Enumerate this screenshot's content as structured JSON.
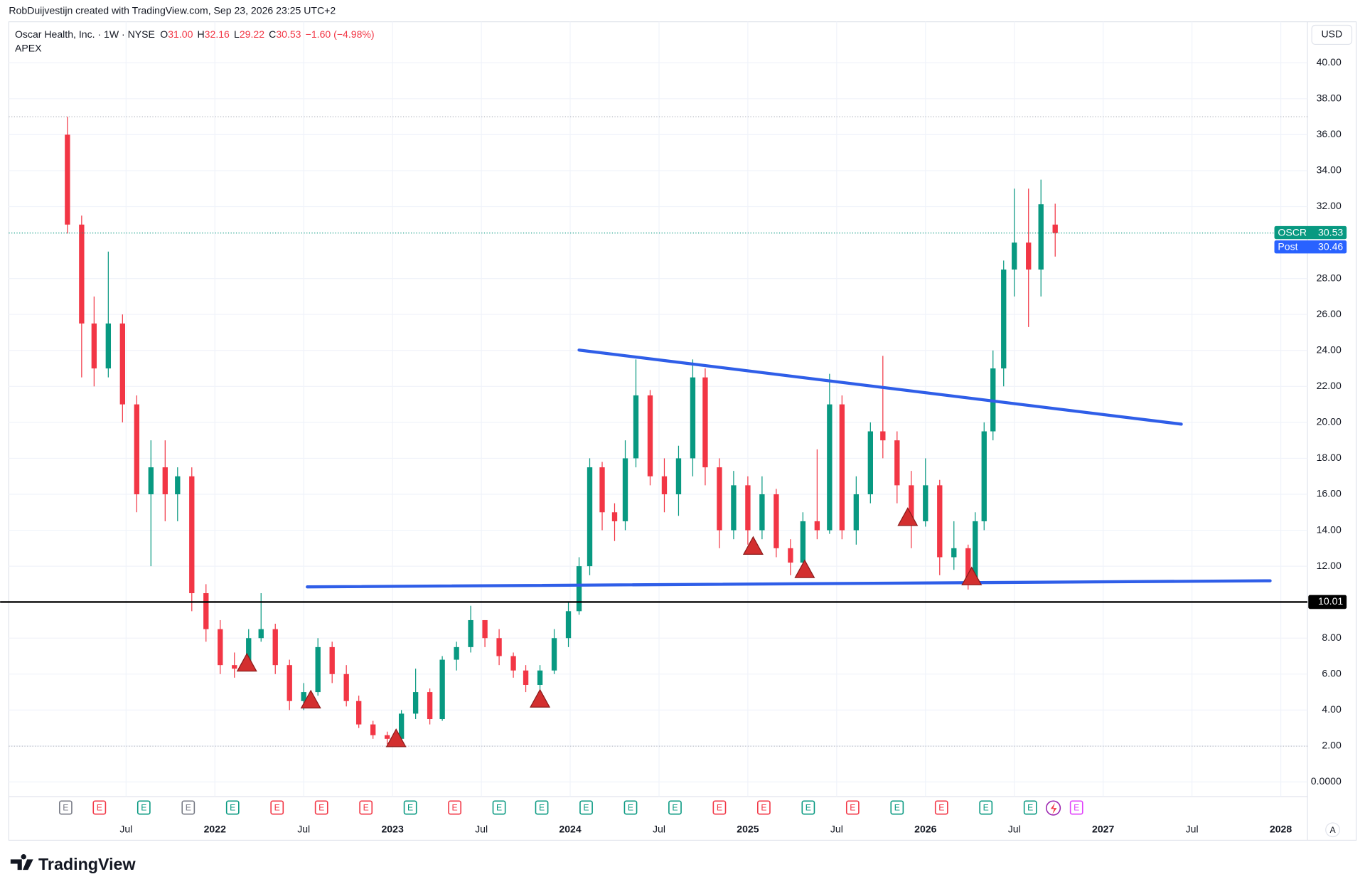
{
  "header": "RobDuijvestijn created with TradingView.com, Sep 23, 2026 23:25 UTC+2",
  "legend": {
    "title": "Oscar Health, Inc. · 1W · NYSE",
    "items": [
      {
        "key": "O",
        "value": "31.00"
      },
      {
        "key": "H",
        "value": "32.16"
      },
      {
        "key": "L",
        "value": "29.22"
      },
      {
        "key": "C",
        "value": "30.53"
      }
    ],
    "change": "−1.60 (−4.98%)",
    "indicator": "APEX"
  },
  "currency": "USD",
  "footer_logo": "TradingView",
  "auto_button": "A",
  "chart_data": {
    "type": "candlestick",
    "x": [
      2021.17,
      2021.25,
      2021.32,
      2021.4,
      2021.48,
      2021.56,
      2021.64,
      2021.72,
      2021.79,
      2021.87,
      2021.95,
      2022.03,
      2022.11,
      2022.19,
      2022.26,
      2022.34,
      2022.42,
      2022.5,
      2022.58,
      2022.66,
      2022.74,
      2022.81,
      2022.89,
      2022.97,
      2023.05,
      2023.13,
      2023.21,
      2023.28,
      2023.36,
      2023.44,
      2023.52,
      2023.6,
      2023.68,
      2023.75,
      2023.83,
      2023.91,
      2023.99,
      2024.05,
      2024.11,
      2024.18,
      2024.25,
      2024.31,
      2024.37,
      2024.45,
      2024.53,
      2024.61,
      2024.69,
      2024.76,
      2024.84,
      2024.92,
      2025.0,
      2025.08,
      2025.16,
      2025.24,
      2025.31,
      2025.39,
      2025.46,
      2025.53,
      2025.61,
      2025.69,
      2025.76,
      2025.84,
      2025.92,
      2026.0,
      2026.08,
      2026.16,
      2026.24,
      2026.28,
      2026.33,
      2026.38,
      2026.44,
      2026.5,
      2026.58,
      2026.65,
      2026.73
    ],
    "open": [
      36,
      31,
      25.5,
      23,
      25.5,
      21,
      16,
      17.5,
      16,
      17,
      10.5,
      8.5,
      6.5,
      6.3,
      8,
      8.5,
      6.5,
      4.5,
      5,
      7.5,
      6,
      4.5,
      3.2,
      2.6,
      2.4,
      3.8,
      5,
      3.5,
      6.8,
      7.5,
      9,
      8,
      7,
      6.2,
      5.4,
      6.2,
      8,
      9.5,
      12,
      17.5,
      15,
      14.5,
      18,
      21.5,
      17,
      16,
      18,
      22.5,
      17.5,
      14,
      16.5,
      14,
      16,
      13,
      12.2,
      14.5,
      14,
      21,
      14,
      16,
      19.5,
      19,
      16.5,
      14.5,
      16.5,
      12.5,
      13,
      11.2,
      14.5,
      19.5,
      23,
      28.5,
      30,
      28.5,
      31
    ],
    "high": [
      37,
      31.5,
      27,
      29.5,
      26,
      21.5,
      19,
      19,
      17.5,
      17.5,
      11,
      9,
      7.2,
      8.5,
      10.5,
      8.8,
      6.8,
      5.5,
      8,
      7.8,
      6.5,
      4.8,
      3.4,
      2.8,
      4,
      6.3,
      5.2,
      7,
      7.8,
      9.8,
      9,
      8.5,
      7.2,
      6.5,
      6.5,
      8.5,
      10,
      12.5,
      18,
      17.8,
      15.5,
      19,
      23.5,
      21.8,
      18,
      18.7,
      23.5,
      23,
      18,
      17.3,
      17,
      17,
      16.3,
      13.5,
      15,
      18.5,
      22.7,
      21.5,
      17,
      20,
      23.7,
      19.5,
      17.3,
      18,
      16.8,
      14.5,
      13.2,
      15,
      20,
      24,
      29,
      33,
      33,
      33.5,
      32.16
    ],
    "low": [
      30.5,
      22.5,
      22,
      22.5,
      20,
      15,
      12,
      14.5,
      14.5,
      9.5,
      7.8,
      6,
      5.8,
      6.2,
      7.8,
      6,
      4,
      4,
      4.8,
      5.5,
      4.2,
      3,
      2.4,
      2.1,
      2.3,
      3.5,
      3.2,
      3.4,
      6.2,
      7.2,
      7.5,
      6.5,
      5.8,
      5,
      4.6,
      6,
      7.5,
      9.3,
      11.5,
      14,
      13.4,
      14,
      17.5,
      16.5,
      15,
      14.8,
      17,
      16.5,
      13,
      13.5,
      13.2,
      13.5,
      12.5,
      11.5,
      11.5,
      13.5,
      13.8,
      13.5,
      13.2,
      15.5,
      18,
      15.5,
      13,
      14.2,
      11.5,
      11.8,
      10.7,
      11,
      14,
      19,
      22,
      27,
      25.3,
      27,
      29.22
    ],
    "close": [
      31,
      25.5,
      23,
      25.5,
      21,
      16,
      17.5,
      16,
      17,
      10.5,
      8.5,
      6.5,
      6.3,
      8,
      8.5,
      6.5,
      4.5,
      5,
      7.5,
      6,
      4.5,
      3.2,
      2.6,
      2.4,
      3.8,
      5,
      3.5,
      6.8,
      7.5,
      9,
      8,
      7,
      6.2,
      5.4,
      6.2,
      8,
      9.5,
      12,
      17.5,
      15,
      14.5,
      18,
      21.5,
      17,
      16,
      18,
      22.5,
      17.5,
      14,
      16.5,
      14,
      16,
      13,
      12.2,
      14.5,
      14,
      21,
      14,
      16,
      19.5,
      19,
      16.5,
      14.5,
      16.5,
      12.5,
      13,
      11.2,
      14.5,
      19.5,
      23,
      28.5,
      30,
      28.5,
      32.13,
      30.53
    ],
    "up_color": "#089981",
    "down_color": "#f23645",
    "xlim": [
      2020.84,
      2028.15
    ],
    "xticks": [
      {
        "value": 2021.5,
        "label": "Jul"
      },
      2022,
      {
        "value": 2022.5,
        "label": "Jul"
      },
      2023,
      {
        "value": 2023.5,
        "label": "Jul"
      },
      2024,
      {
        "value": 2024.5,
        "label": "Jul"
      },
      2025,
      {
        "value": 2025.5,
        "label": "Jul"
      },
      2026,
      {
        "value": 2026.5,
        "label": "Jul"
      },
      2027,
      {
        "value": 2027.5,
        "label": "Jul"
      },
      2028
    ],
    "ylim": [
      -0.82,
      42.28
    ],
    "yticks": [
      {
        "value": 0,
        "label": "0.0000"
      },
      {
        "value": 2,
        "label": "2.00"
      },
      {
        "value": 4,
        "label": "4.00"
      },
      {
        "value": 6,
        "label": "6.00"
      },
      {
        "value": 8,
        "label": "8.00"
      },
      {
        "value": 12,
        "label": "12.00"
      },
      {
        "value": 14,
        "label": "14.00"
      },
      {
        "value": 16,
        "label": "16.00"
      },
      {
        "value": 18,
        "label": "18.00"
      },
      {
        "value": 20,
        "label": "20.00"
      },
      {
        "value": 22,
        "label": "22.00"
      },
      {
        "value": 24,
        "label": "24.00"
      },
      {
        "value": 26,
        "label": "26.00"
      },
      {
        "value": 28,
        "label": "28.00"
      },
      {
        "value": 32,
        "label": "32.00"
      },
      {
        "value": 34,
        "label": "34.00"
      },
      {
        "value": 36,
        "label": "36.00"
      },
      {
        "value": 38,
        "label": "38.00"
      },
      {
        "value": 40,
        "label": "40.00"
      }
    ],
    "grid": true,
    "dotted_levels": [
      37.0,
      1.99
    ],
    "price_labels": [
      {
        "name": "OSCR",
        "value": 30.53,
        "label": "30.53",
        "color": "#089981"
      },
      {
        "name": "Post",
        "value": 30.46,
        "label": "30.46",
        "color": "#2962ff"
      }
    ],
    "horizontal_lines": [
      {
        "value": 10.01,
        "label": "10.01",
        "color": "#000000"
      }
    ],
    "trendlines": [
      {
        "x": [
          2024.05,
          2027.44
        ],
        "y": [
          24.02,
          19.9
        ],
        "color": "#2f5ee8"
      },
      {
        "x": [
          2022.52,
          2027.94
        ],
        "y": [
          10.85,
          11.19
        ],
        "color": "#2f5ee8"
      }
    ],
    "signals": {
      "x": [
        2022.18,
        2022.54,
        2023.02,
        2023.83,
        2025.03,
        2025.32,
        2025.9,
        2026.26
      ],
      "y": [
        6.6,
        4.55,
        2.4,
        4.6,
        13.1,
        11.8,
        14.7,
        11.4
      ],
      "color": "#d32f2f"
    },
    "earnings": {
      "label": "E",
      "x": [
        2021.16,
        2021.35,
        2021.6,
        2021.85,
        2022.1,
        2022.35,
        2022.6,
        2022.85,
        2023.1,
        2023.35,
        2023.6,
        2023.84,
        2024.09,
        2024.34,
        2024.59,
        2024.84,
        2025.09,
        2025.34,
        2025.59,
        2025.84,
        2026.09,
        2026.34,
        2026.59,
        2026.85
      ],
      "colors": [
        "#787b86",
        "#f23645",
        "#089981",
        "#787b86",
        "#089981",
        "#f23645",
        "#f23645",
        "#f23645",
        "#089981",
        "#f23645",
        "#089981",
        "#089981",
        "#089981",
        "#089981",
        "#089981",
        "#f23645",
        "#f23645",
        "#089981",
        "#f23645",
        "#089981",
        "#f23645",
        "#089981",
        "#089981",
        "#e040fb"
      ]
    }
  }
}
